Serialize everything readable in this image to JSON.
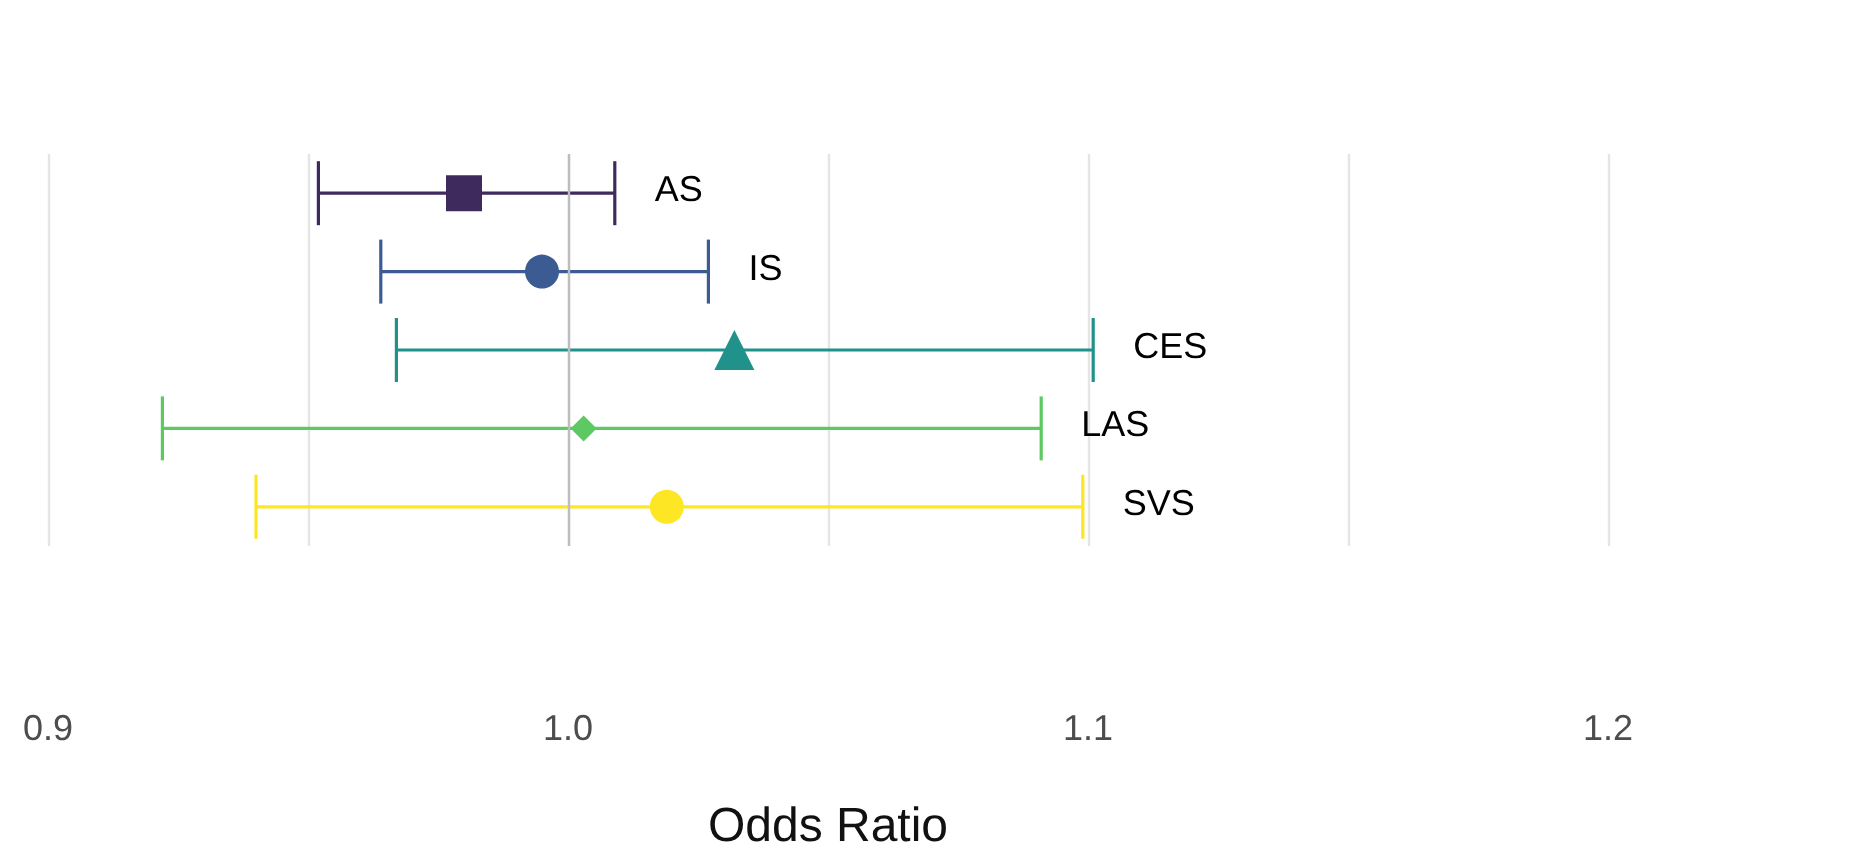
{
  "chart_data": {
    "type": "scatter",
    "orientation": "horizontal",
    "xlabel": "Odds Ratio",
    "categories": [
      "AS",
      "IS",
      "CES",
      "LAS",
      "SVS"
    ],
    "series": [
      {
        "color": "#3f2a5e",
        "marker": "square",
        "values": [
          0.98,
          null,
          null,
          null,
          null
        ],
        "errors": [
          [
            0.952,
            1.009
          ],
          null,
          null,
          null,
          null
        ]
      },
      {
        "color": "#3b5b92",
        "marker": "circle",
        "values": [
          null,
          0.995,
          null,
          null,
          null
        ],
        "errors": [
          null,
          [
            0.964,
            1.027
          ],
          null,
          null,
          null
        ]
      },
      {
        "color": "#21918c",
        "marker": "triangle",
        "values": [
          null,
          null,
          1.032,
          null,
          null
        ],
        "errors": [
          null,
          null,
          [
            0.967,
            1.101
          ],
          null,
          null
        ]
      },
      {
        "color": "#5ec962",
        "marker": "diamond",
        "values": [
          null,
          null,
          null,
          1.003,
          null
        ],
        "errors": [
          null,
          null,
          null,
          [
            0.922,
            1.091
          ],
          null
        ]
      },
      {
        "color": "#fde725",
        "marker": "circle",
        "values": [
          null,
          null,
          null,
          null,
          1.019
        ],
        "errors": [
          null,
          null,
          null,
          null,
          [
            0.94,
            1.099
          ]
        ]
      }
    ],
    "xlim": [
      0.9,
      1.2
    ],
    "xticks": [
      0.9,
      {
        "value": 0.95,
        "label": null
      },
      {
        "value": 1.0,
        "label": "1.0"
      },
      {
        "value": 1.05,
        "label": null
      },
      1.1,
      {
        "value": 1.15,
        "label": null
      },
      1.2
    ],
    "ref_lines": [
      {
        "axis": "x",
        "value": 1.0,
        "label": null,
        "color": "#bdbdbd"
      }
    ],
    "grid": "x"
  }
}
